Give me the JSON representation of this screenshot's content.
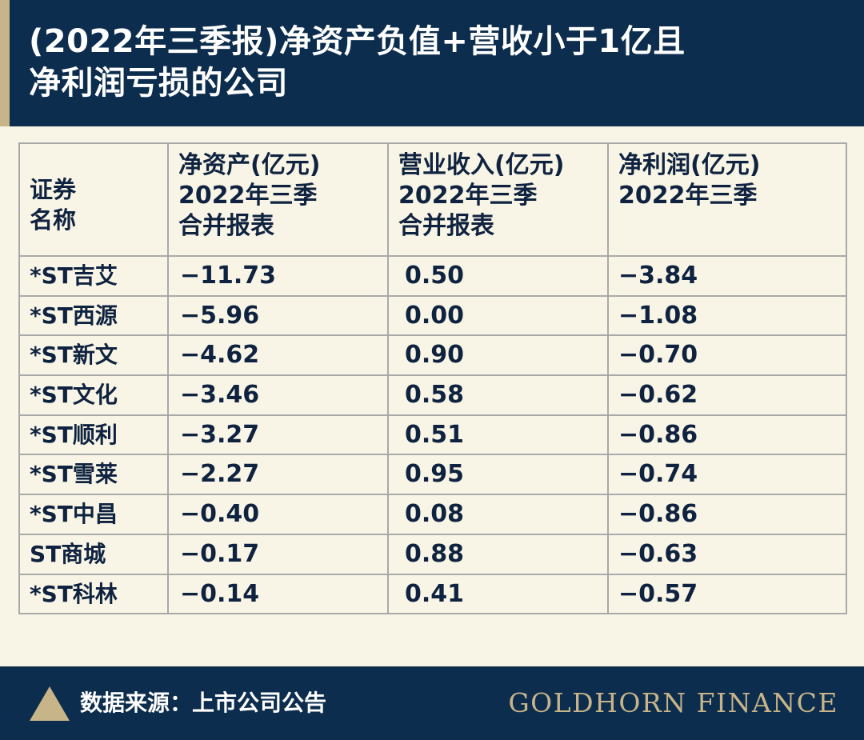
{
  "header": {
    "title_line1": "(2022年三季报)净资产负值+营收小于1亿且",
    "title_line2": "净利润亏损的公司"
  },
  "table": {
    "columns": [
      {
        "lines": [
          "证券",
          "名称"
        ]
      },
      {
        "lines": [
          "净资产(亿元)",
          "2022年三季",
          "合并报表"
        ]
      },
      {
        "lines": [
          "营业收入(亿元)",
          "2022年三季",
          "合并报表"
        ]
      },
      {
        "lines": [
          "净利润(亿元)",
          "2022年三季"
        ]
      }
    ],
    "rows": [
      {
        "name": "*ST吉艾",
        "net_assets": "−11.73",
        "revenue": "0.50",
        "net_profit": "−3.84"
      },
      {
        "name": "*ST西源",
        "net_assets": "−5.96",
        "revenue": "0.00",
        "net_profit": "−1.08"
      },
      {
        "name": "*ST新文",
        "net_assets": "−4.62",
        "revenue": "0.90",
        "net_profit": "−0.70"
      },
      {
        "name": "*ST文化",
        "net_assets": "−3.46",
        "revenue": "0.58",
        "net_profit": "−0.62"
      },
      {
        "name": "*ST顺利",
        "net_assets": "−3.27",
        "revenue": "0.51",
        "net_profit": "−0.86"
      },
      {
        "name": "*ST雪莱",
        "net_assets": "−2.27",
        "revenue": "0.95",
        "net_profit": "−0.74"
      },
      {
        "name": "*ST中昌",
        "net_assets": "−0.40",
        "revenue": "0.08",
        "net_profit": "−0.86"
      },
      {
        "name": "ST商城",
        "net_assets": "−0.17",
        "revenue": "0.88",
        "net_profit": "−0.63"
      },
      {
        "name": "*ST科林",
        "net_assets": "−0.14",
        "revenue": "0.41",
        "net_profit": "−0.57"
      }
    ]
  },
  "footer": {
    "source": "数据来源：上市公司公告",
    "brand": "GOLDHORN FINANCE",
    "logo_icon": "triangle-icon"
  },
  "colors": {
    "navy": "#0c2d4d",
    "gold": "#c7b488",
    "background": "#f8f5e6",
    "text": "#0f2340"
  },
  "chart_data": {
    "type": "table",
    "title": "(2022年三季报)净资产负值+营收小于1亿且净利润亏损的公司",
    "columns": [
      "证券名称",
      "净资产(亿元) 2022年三季 合并报表",
      "营业收入(亿元) 2022年三季 合并报表",
      "净利润(亿元) 2022年三季"
    ],
    "series": [
      {
        "name": "净资产(亿元)",
        "values": [
          -11.73,
          -5.96,
          -4.62,
          -3.46,
          -3.27,
          -2.27,
          -0.4,
          -0.17,
          -0.14
        ]
      },
      {
        "name": "营业收入(亿元)",
        "values": [
          0.5,
          0.0,
          0.9,
          0.58,
          0.51,
          0.95,
          0.08,
          0.88,
          0.41
        ]
      },
      {
        "name": "净利润(亿元)",
        "values": [
          -3.84,
          -1.08,
          -0.7,
          -0.62,
          -0.86,
          -0.74,
          -0.86,
          -0.63,
          -0.57
        ]
      }
    ],
    "categories": [
      "*ST吉艾",
      "*ST西源",
      "*ST新文",
      "*ST文化",
      "*ST顺利",
      "*ST雪莱",
      "*ST中昌",
      "ST商城",
      "*ST科林"
    ]
  }
}
